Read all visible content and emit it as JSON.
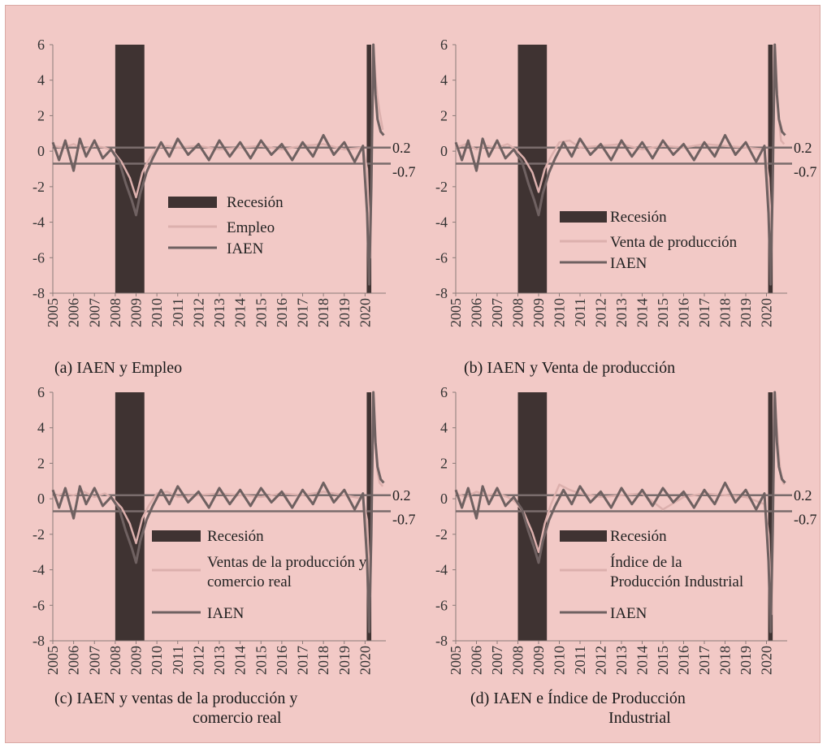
{
  "colors": {
    "background": "#f2c9c6",
    "recession": "#3f3332",
    "iaen": "#6f6161",
    "indicator": "#dcb0ad",
    "reference": "#7a6c6c",
    "axis": "#8a7a78"
  },
  "chart_data": [
    {
      "type": "line",
      "caption": "(a)  IAEN y Empleo",
      "ylim": [
        -8,
        6
      ],
      "yticks": [
        "6",
        "4",
        "2",
        "0",
        "-2",
        "-4",
        "-6",
        "-8"
      ],
      "x_tick_labels": [
        "2005",
        "2006",
        "2007",
        "2008",
        "2009",
        "2010",
        "2011",
        "2012",
        "2013",
        "2014",
        "2015",
        "2016",
        "2017",
        "2018",
        "2019",
        "2020"
      ],
      "xlim": [
        2005,
        2021
      ],
      "reference_lines": [
        {
          "y": 0.2,
          "label": "0.2"
        },
        {
          "y": -0.7,
          "label": "-0.7"
        }
      ],
      "recessions": [
        [
          2008.0,
          2009.4
        ],
        [
          2020.08,
          2020.3
        ]
      ],
      "legend": {
        "recession": "Recesión",
        "indicator": "Empleo",
        "iaen": "IAEN",
        "placement": "center"
      },
      "series": [
        {
          "name": "Empleo",
          "role": "indicator",
          "x": [
            2005,
            2005.5,
            2006,
            2006.5,
            2007,
            2007.5,
            2007.9,
            2008.3,
            2008.7,
            2009.0,
            2009.3,
            2009.6,
            2010,
            2010.5,
            2011,
            2012,
            2013,
            2014,
            2015,
            2016,
            2017,
            2018,
            2019,
            2019.9,
            2020.1,
            2020.25,
            2020.4,
            2020.5,
            2020.6,
            2020.7,
            2020.85
          ],
          "y": [
            0.3,
            0.2,
            0.4,
            0.1,
            0.3,
            0.2,
            0.0,
            -0.6,
            -1.5,
            -2.6,
            -1.2,
            -0.5,
            0.2,
            0.3,
            0.2,
            0.3,
            0.1,
            0.2,
            0.3,
            0.1,
            0.3,
            0.4,
            0.1,
            0.2,
            -1.0,
            -6.0,
            5.8,
            4.2,
            3.0,
            2.2,
            1.2
          ]
        },
        {
          "name": "IAEN",
          "role": "iaen",
          "x": [
            2005,
            2005.3,
            2005.6,
            2006,
            2006.3,
            2006.6,
            2007,
            2007.4,
            2007.8,
            2008.2,
            2008.5,
            2008.8,
            2009.0,
            2009.2,
            2009.5,
            2009.8,
            2010.2,
            2010.6,
            2011,
            2011.5,
            2012,
            2012.5,
            2013,
            2013.5,
            2014,
            2014.5,
            2015,
            2015.5,
            2016,
            2016.5,
            2017,
            2017.5,
            2018,
            2018.5,
            2019,
            2019.5,
            2019.9,
            2020.1,
            2020.2,
            2020.3,
            2020.4,
            2020.5,
            2020.6,
            2020.75,
            2020.9
          ],
          "y": [
            0.5,
            -0.5,
            0.6,
            -1.1,
            0.7,
            -0.3,
            0.6,
            -0.4,
            0.1,
            -0.6,
            -1.8,
            -2.8,
            -3.6,
            -2.4,
            -1.2,
            -0.4,
            0.5,
            -0.3,
            0.7,
            -0.2,
            0.4,
            -0.5,
            0.6,
            -0.3,
            0.5,
            -0.4,
            0.6,
            -0.2,
            0.4,
            -0.5,
            0.5,
            -0.3,
            0.9,
            -0.2,
            0.5,
            -0.6,
            0.3,
            -3.5,
            -7.5,
            -2.0,
            6.0,
            3.2,
            1.8,
            1.1,
            0.9
          ]
        }
      ]
    },
    {
      "type": "line",
      "caption": "(b)  IAEN y Venta de producción",
      "ylim": [
        -8,
        6
      ],
      "yticks": [
        "6",
        "4",
        "2",
        "0",
        "-2",
        "-4",
        "-6",
        "-8"
      ],
      "x_tick_labels": [
        "2005",
        "2006",
        "2007",
        "2008",
        "2009",
        "2010",
        "2011",
        "2012",
        "2013",
        "2014",
        "2015",
        "2016",
        "2017",
        "2018",
        "2019",
        "2020"
      ],
      "xlim": [
        2005,
        2021
      ],
      "reference_lines": [
        {
          "y": 0.2,
          "label": "0.2"
        },
        {
          "y": -0.7,
          "label": "-0.7"
        }
      ],
      "recessions": [
        [
          2008.0,
          2009.4
        ],
        [
          2020.08,
          2020.3
        ]
      ],
      "legend": {
        "recession": "Recesión",
        "indicator": "Venta de producción",
        "iaen": "IAEN",
        "placement": "center-right"
      },
      "series": [
        {
          "name": "Venta de producción",
          "role": "indicator",
          "x": [
            2005,
            2005.5,
            2006,
            2006.5,
            2007,
            2007.5,
            2007.9,
            2008.3,
            2008.7,
            2009.0,
            2009.3,
            2009.6,
            2010,
            2010.5,
            2011,
            2012,
            2013,
            2014,
            2015,
            2016,
            2017,
            2018,
            2019,
            2019.9,
            2020.1,
            2020.25,
            2020.4,
            2020.5,
            2020.6,
            2020.7,
            2020.85
          ],
          "y": [
            0.2,
            0.4,
            0.1,
            0.3,
            0.2,
            0.4,
            0.1,
            -0.4,
            -1.2,
            -2.3,
            -1.0,
            -0.3,
            0.5,
            0.6,
            0.2,
            0.3,
            0.4,
            0.1,
            0.3,
            0.2,
            0.4,
            0.3,
            0.2,
            0.1,
            -1.5,
            -5.0,
            5.5,
            3.5,
            1.8,
            0.6,
            0.4
          ]
        },
        {
          "name": "IAEN",
          "role": "iaen",
          "x": [
            2005,
            2005.3,
            2005.6,
            2006,
            2006.3,
            2006.6,
            2007,
            2007.4,
            2007.8,
            2008.2,
            2008.5,
            2008.8,
            2009.0,
            2009.2,
            2009.5,
            2009.8,
            2010.2,
            2010.6,
            2011,
            2011.5,
            2012,
            2012.5,
            2013,
            2013.5,
            2014,
            2014.5,
            2015,
            2015.5,
            2016,
            2016.5,
            2017,
            2017.5,
            2018,
            2018.5,
            2019,
            2019.5,
            2019.9,
            2020.1,
            2020.2,
            2020.3,
            2020.4,
            2020.5,
            2020.6,
            2020.75,
            2020.9
          ],
          "y": [
            0.5,
            -0.5,
            0.6,
            -1.1,
            0.7,
            -0.3,
            0.6,
            -0.4,
            0.1,
            -0.6,
            -1.8,
            -2.8,
            -3.6,
            -2.4,
            -1.2,
            -0.4,
            0.5,
            -0.3,
            0.7,
            -0.2,
            0.4,
            -0.5,
            0.6,
            -0.3,
            0.5,
            -0.4,
            0.6,
            -0.2,
            0.4,
            -0.5,
            0.5,
            -0.3,
            0.9,
            -0.2,
            0.5,
            -0.6,
            0.3,
            -3.5,
            -7.5,
            -2.0,
            6.0,
            3.2,
            1.8,
            1.1,
            0.9
          ]
        }
      ]
    },
    {
      "type": "line",
      "caption": "(c)  IAEN y ventas de la producción y",
      "caption_line2": "comercio real",
      "ylim": [
        -8,
        6
      ],
      "yticks": [
        "6",
        "4",
        "2",
        "0",
        "-2",
        "-4",
        "-6",
        "-8"
      ],
      "x_tick_labels": [
        "2005",
        "2006",
        "2007",
        "2008",
        "2009",
        "2010",
        "2011",
        "2012",
        "2013",
        "2014",
        "2015",
        "2016",
        "2017",
        "2018",
        "2019",
        "2020"
      ],
      "xlim": [
        2005,
        2021
      ],
      "reference_lines": [
        {
          "y": 0.2,
          "label": "0.2"
        },
        {
          "y": -0.7,
          "label": "-0.7"
        }
      ],
      "recessions": [
        [
          2008.0,
          2009.4
        ],
        [
          2020.08,
          2020.3
        ]
      ],
      "legend": {
        "recession": "Recesión",
        "indicator": "Ventas de la producción y",
        "indicator_line2": "comercio real",
        "iaen": "IAEN",
        "placement": "center"
      },
      "series": [
        {
          "name": "Ventas de la producción y comercio real",
          "role": "indicator",
          "x": [
            2005,
            2005.5,
            2006,
            2006.5,
            2007,
            2007.5,
            2007.9,
            2008.3,
            2008.7,
            2009.0,
            2009.3,
            2009.6,
            2010,
            2010.5,
            2011,
            2012,
            2013,
            2014,
            2015,
            2016,
            2017,
            2018,
            2019,
            2019.9,
            2020.1,
            2020.25,
            2020.4,
            2020.5,
            2020.6,
            2020.7,
            2020.85
          ],
          "y": [
            0.1,
            0.3,
            0.2,
            0.4,
            0.1,
            0.3,
            0.0,
            -0.5,
            -1.4,
            -2.5,
            -1.1,
            -0.4,
            0.3,
            0.4,
            0.1,
            0.2,
            0.3,
            0.2,
            0.1,
            0.3,
            0.2,
            0.4,
            0.2,
            0.0,
            -1.2,
            -5.5,
            5.0,
            3.0,
            1.5,
            0.9,
            0.7
          ]
        },
        {
          "name": "IAEN",
          "role": "iaen",
          "x": [
            2005,
            2005.3,
            2005.6,
            2006,
            2006.3,
            2006.6,
            2007,
            2007.4,
            2007.8,
            2008.2,
            2008.5,
            2008.8,
            2009.0,
            2009.2,
            2009.5,
            2009.8,
            2010.2,
            2010.6,
            2011,
            2011.5,
            2012,
            2012.5,
            2013,
            2013.5,
            2014,
            2014.5,
            2015,
            2015.5,
            2016,
            2016.5,
            2017,
            2017.5,
            2018,
            2018.5,
            2019,
            2019.5,
            2019.9,
            2020.1,
            2020.2,
            2020.3,
            2020.4,
            2020.5,
            2020.6,
            2020.75,
            2020.9
          ],
          "y": [
            0.5,
            -0.5,
            0.6,
            -1.1,
            0.7,
            -0.3,
            0.6,
            -0.4,
            0.1,
            -0.6,
            -1.8,
            -2.8,
            -3.6,
            -2.4,
            -1.2,
            -0.4,
            0.5,
            -0.3,
            0.7,
            -0.2,
            0.4,
            -0.5,
            0.6,
            -0.3,
            0.5,
            -0.4,
            0.6,
            -0.2,
            0.4,
            -0.5,
            0.5,
            -0.3,
            0.9,
            -0.2,
            0.5,
            -0.6,
            0.3,
            -3.5,
            -7.5,
            -2.0,
            6.0,
            3.2,
            1.8,
            1.1,
            0.9
          ]
        }
      ]
    },
    {
      "type": "line",
      "caption": "(d)  IAEN e Índice de Producción",
      "caption_line2": "Industrial",
      "ylim": [
        -8,
        6
      ],
      "yticks": [
        "6",
        "4",
        "2",
        "0",
        "-2",
        "-4",
        "-6",
        "-8"
      ],
      "x_tick_labels": [
        "2005",
        "2006",
        "2007",
        "2008",
        "2009",
        "2010",
        "2011",
        "2012",
        "2013",
        "2014",
        "2015",
        "2016",
        "2017",
        "2018",
        "2019",
        "2020"
      ],
      "xlim": [
        2005,
        2021
      ],
      "reference_lines": [
        {
          "y": 0.2,
          "label": "0.2"
        },
        {
          "y": -0.7,
          "label": "-0.7"
        }
      ],
      "recessions": [
        [
          2008.0,
          2009.4
        ],
        [
          2020.08,
          2020.3
        ]
      ],
      "legend": {
        "recession": "Recesión",
        "indicator": "Índice de la",
        "indicator_line2": "Producción Industrial",
        "iaen": "IAEN",
        "placement": "center-right"
      },
      "series": [
        {
          "name": "Índice de la Producción Industrial",
          "role": "indicator",
          "x": [
            2005,
            2005.5,
            2006,
            2006.5,
            2007,
            2007.5,
            2007.9,
            2008.3,
            2008.7,
            2009.0,
            2009.3,
            2009.6,
            2010,
            2010.5,
            2011,
            2012,
            2013,
            2014,
            2015,
            2016,
            2017,
            2018,
            2019,
            2019.9,
            2020.1,
            2020.25,
            2020.4,
            2020.5,
            2020.6,
            2020.7,
            2020.85
          ],
          "y": [
            0.3,
            0.1,
            0.4,
            0.2,
            0.3,
            0.1,
            -0.2,
            -0.8,
            -1.9,
            -3.0,
            -1.4,
            -0.3,
            0.8,
            0.5,
            0.3,
            0.1,
            0.2,
            0.3,
            -0.6,
            0.1,
            0.3,
            0.2,
            0.1,
            -0.3,
            -2.0,
            -6.5,
            5.5,
            4.0,
            2.5,
            1.2,
            0.8
          ]
        },
        {
          "name": "IAEN",
          "role": "iaen",
          "x": [
            2005,
            2005.3,
            2005.6,
            2006,
            2006.3,
            2006.6,
            2007,
            2007.4,
            2007.8,
            2008.2,
            2008.5,
            2008.8,
            2009.0,
            2009.2,
            2009.5,
            2009.8,
            2010.2,
            2010.6,
            2011,
            2011.5,
            2012,
            2012.5,
            2013,
            2013.5,
            2014,
            2014.5,
            2015,
            2015.5,
            2016,
            2016.5,
            2017,
            2017.5,
            2018,
            2018.5,
            2019,
            2019.5,
            2019.9,
            2020.1,
            2020.2,
            2020.3,
            2020.4,
            2020.5,
            2020.6,
            2020.75,
            2020.9
          ],
          "y": [
            0.5,
            -0.5,
            0.6,
            -1.1,
            0.7,
            -0.3,
            0.6,
            -0.4,
            0.1,
            -0.6,
            -1.8,
            -2.8,
            -3.6,
            -2.4,
            -1.2,
            -0.4,
            0.5,
            -0.3,
            0.7,
            -0.2,
            0.4,
            -0.5,
            0.6,
            -0.3,
            0.5,
            -0.4,
            0.6,
            -0.2,
            0.4,
            -0.5,
            0.5,
            -0.3,
            0.9,
            -0.2,
            0.5,
            -0.6,
            0.3,
            -3.5,
            -7.5,
            -2.0,
            6.0,
            3.2,
            1.8,
            1.1,
            0.9
          ]
        }
      ]
    }
  ]
}
